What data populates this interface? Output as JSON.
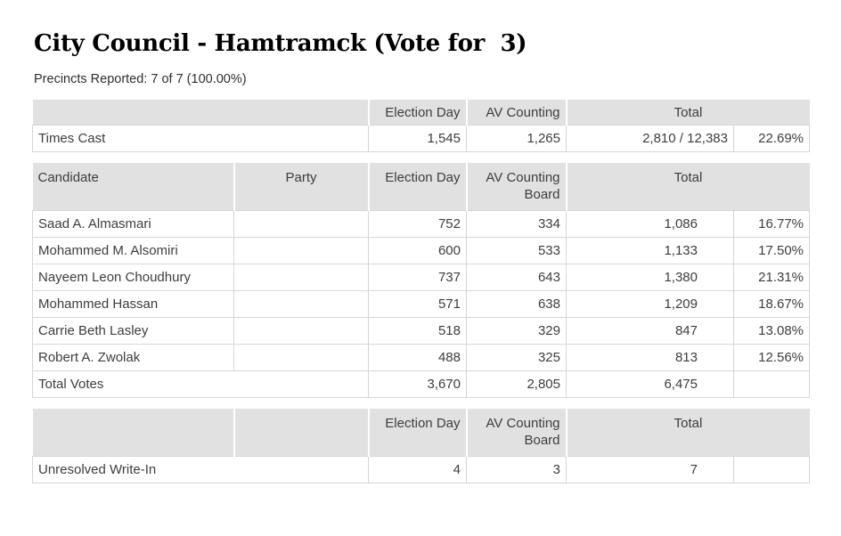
{
  "page": {
    "title": "City Council - Hamtramck (Vote for  3)",
    "precincts_reported": "Precincts Reported: 7 of 7 (100.00%)"
  },
  "colors": {
    "header_bg": "#e1e1e1",
    "cell_border": "#d6d6d6",
    "header_divider": "#ffffff",
    "text": "#3d3d3d",
    "title_text": "#000000"
  },
  "times_cast": {
    "headers": {
      "blank": "",
      "election_day": "Election Day",
      "av_counting": "AV Counting",
      "total": "Total"
    },
    "row": {
      "label": "Times Cast",
      "election_day": "1,545",
      "av_counting": "1,265",
      "total": "2,810 / 12,383",
      "percent": "22.69%"
    }
  },
  "candidates": {
    "headers": {
      "candidate": "Candidate",
      "party": "Party",
      "election_day": "Election Day",
      "av_counting_board": "AV Counting Board",
      "total": "Total"
    },
    "rows": [
      {
        "name": "Saad A. Almasmari",
        "party": "",
        "election_day": "752",
        "av_counting_board": "334",
        "total": "1,086",
        "percent": "16.77%"
      },
      {
        "name": "Mohammed M. Alsomiri",
        "party": "",
        "election_day": "600",
        "av_counting_board": "533",
        "total": "1,133",
        "percent": "17.50%"
      },
      {
        "name": "Nayeem Leon Choudhury",
        "party": "",
        "election_day": "737",
        "av_counting_board": "643",
        "total": "1,380",
        "percent": "21.31%"
      },
      {
        "name": "Mohammed Hassan",
        "party": "",
        "election_day": "571",
        "av_counting_board": "638",
        "total": "1,209",
        "percent": "18.67%"
      },
      {
        "name": "Carrie Beth Lasley",
        "party": "",
        "election_day": "518",
        "av_counting_board": "329",
        "total": "847",
        "percent": "13.08%"
      },
      {
        "name": "Robert A. Zwolak",
        "party": "",
        "election_day": "488",
        "av_counting_board": "325",
        "total": "813",
        "percent": "12.56%"
      }
    ],
    "total_row": {
      "label": "Total Votes",
      "election_day": "3,670",
      "av_counting_board": "2,805",
      "total": "6,475",
      "percent": ""
    }
  },
  "write_in": {
    "headers": {
      "blank1": "",
      "blank2": "",
      "election_day": "Election Day",
      "av_counting_board": "AV Counting Board",
      "total": "Total"
    },
    "row": {
      "label": "Unresolved Write-In",
      "election_day": "4",
      "av_counting_board": "3",
      "total": "7",
      "percent": ""
    }
  }
}
